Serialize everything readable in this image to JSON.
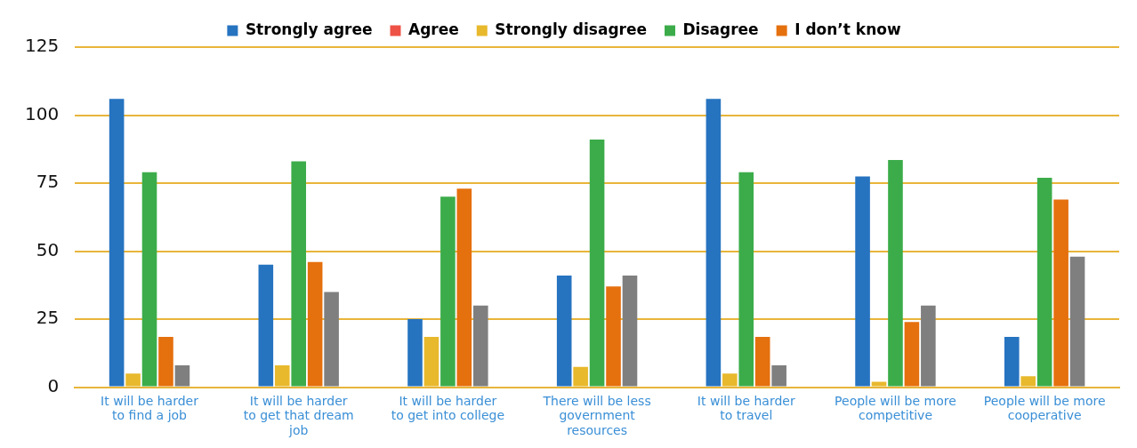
{
  "chart_data": {
    "type": "bar",
    "categories": [
      "It will be harder to find a job",
      "It will be harder to get that dream job",
      "It will be harder to get into college",
      "There will be less government resources",
      "It will be harder to travel",
      "People will be more competitive",
      "People will be more cooperative"
    ],
    "series": [
      {
        "name": "Strongly agree",
        "color": "#2673c0",
        "values": [
          106,
          45,
          25,
          41,
          106,
          77.5,
          18.5
        ]
      },
      {
        "name": "Agree",
        "color": "#ee5145",
        "values": [
          null,
          null,
          null,
          null,
          null,
          null,
          null
        ]
      },
      {
        "name": "Strongly disagree",
        "color": "#e8b92d",
        "values": [
          5,
          8,
          18.5,
          7.5,
          5,
          2,
          4
        ]
      },
      {
        "name": "Disagree",
        "color": "#3cac4a",
        "values": [
          79,
          83,
          70,
          91,
          79,
          83.5,
          77
        ]
      },
      {
        "name": "I don’t know",
        "color": "#e5700e",
        "values": [
          18.5,
          46,
          73,
          37,
          18.5,
          24,
          69
        ]
      },
      {
        "color": "#7f7f7f",
        "values": [
          8,
          35,
          30,
          41,
          8,
          30,
          48
        ]
      }
    ],
    "ylim": [
      0,
      125
    ],
    "yticks": [
      0,
      25,
      50,
      75,
      100,
      125
    ],
    "grid": "y",
    "legend": "top"
  }
}
